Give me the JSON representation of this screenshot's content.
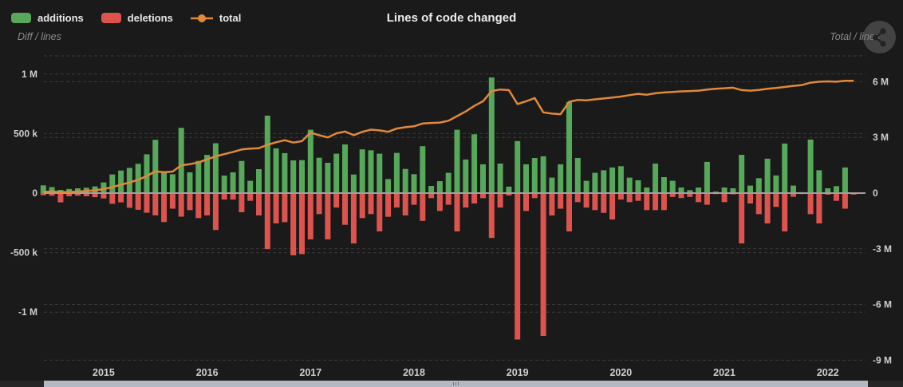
{
  "title": "Lines of code changed",
  "legend": {
    "items": [
      {
        "label": "additions",
        "marker": "square",
        "color": "#57a85a"
      },
      {
        "label": "deletions",
        "marker": "square",
        "color": "#dd544f"
      },
      {
        "label": "total",
        "marker": "line-circle",
        "color": "#e18938"
      }
    ]
  },
  "left_axis": {
    "title": "Diff / lines",
    "ticks": [
      {
        "label": "1 M",
        "value_k": 1000
      },
      {
        "label": "500 k",
        "value_k": 500
      },
      {
        "label": "0",
        "value_k": 0
      },
      {
        "label": "-500 k",
        "value_k": -500
      },
      {
        "label": "-1 M",
        "value_k": -1000
      }
    ]
  },
  "right_axis": {
    "title": "Total / lines",
    "ticks": [
      {
        "label": "6 M",
        "value_m": 6
      },
      {
        "label": "3 M",
        "value_m": 3
      },
      {
        "label": "0",
        "value_m": 0
      },
      {
        "label": "-3 M",
        "value_m": -3
      },
      {
        "label": "-6 M",
        "value_m": -6
      },
      {
        "label": "-9 M",
        "value_m": -9
      }
    ]
  },
  "x_axis": {
    "ticks": [
      {
        "label": "2015"
      },
      {
        "label": "2016"
      },
      {
        "label": "2017"
      },
      {
        "label": "2018"
      },
      {
        "label": "2019"
      },
      {
        "label": "2020"
      },
      {
        "label": "2021"
      },
      {
        "label": "2022"
      }
    ]
  },
  "colors": {
    "background": "#1a1a1a",
    "additions": "#57a85a",
    "deletions": "#dd544f",
    "total": "#e18938",
    "grid": "#3a3a3a",
    "zero_line": "#a0a0a0",
    "axis_text": "#cfcfcf",
    "muted_text": "#8c8c8c",
    "scrollbar_thumb": "#b3b8c2"
  },
  "icons": {
    "menu_button": "share-icon"
  },
  "chart_data": {
    "type": "bar+line",
    "title": "Lines of code changed",
    "x_start_month": "2014-06",
    "x_interval": "month",
    "left_ylabel": "Diff / lines",
    "right_ylabel": "Total / lines",
    "left_ylim_k": [
      -1430,
      1150
    ],
    "right_ylim_m": [
      -9.2,
      7.4
    ],
    "grid": "dashed-horizontal",
    "legend_position": "top-left",
    "series": [
      {
        "name": "additions",
        "type": "bar",
        "axis": "left",
        "unit": "thousand lines",
        "values_k": [
          65,
          50,
          27,
          34,
          40,
          45,
          56,
          90,
          157,
          190,
          212,
          246,
          326,
          448,
          170,
          158,
          548,
          174,
          270,
          321,
          419,
          147,
          174,
          270,
          103,
          201,
          651,
          376,
          336,
          275,
          277,
          532,
          297,
          255,
          331,
          409,
          156,
          367,
          360,
          331,
          118,
          338,
          203,
          159,
          394,
          60,
          100,
          170,
          532,
          282,
          494,
          242,
          971,
          248,
          54,
          437,
          242,
          295,
          309,
          130,
          242,
          766,
          295,
          103,
          170,
          192,
          215,
          226,
          130,
          107,
          47,
          248,
          134,
          103,
          47,
          25,
          47,
          262,
          13,
          47,
          40,
          322,
          63,
          125,
          289,
          148,
          416,
          63,
          8,
          450,
          192,
          40,
          58,
          215,
          5
        ]
      },
      {
        "name": "deletions",
        "type": "bar",
        "axis": "left",
        "unit": "thousand lines",
        "direction": "negative",
        "values_k": [
          18,
          22,
          78,
          27,
          22,
          27,
          34,
          45,
          90,
          78,
          123,
          140,
          165,
          187,
          243,
          131,
          198,
          143,
          210,
          187,
          310,
          54,
          54,
          161,
          65,
          188,
          470,
          255,
          244,
          523,
          512,
          389,
          176,
          389,
          121,
          266,
          423,
          210,
          176,
          322,
          199,
          121,
          188,
          98,
          233,
          42,
          150,
          98,
          322,
          121,
          87,
          42,
          377,
          121,
          20,
          1230,
          150,
          42,
          1200,
          188,
          131,
          322,
          76,
          121,
          143,
          166,
          222,
          54,
          76,
          65,
          143,
          143,
          143,
          32,
          42,
          32,
          76,
          98,
          8,
          76,
          10,
          423,
          87,
          177,
          255,
          116,
          322,
          31,
          8,
          177,
          255,
          13,
          65,
          131,
          13
        ]
      },
      {
        "name": "total",
        "type": "line",
        "axis": "right",
        "unit": "million lines",
        "values_m": [
          0.06,
          0.09,
          0.05,
          0.06,
          0.08,
          0.11,
          0.15,
          0.22,
          0.32,
          0.45,
          0.57,
          0.72,
          0.92,
          1.18,
          1.12,
          1.16,
          1.5,
          1.56,
          1.65,
          1.82,
          1.98,
          2.1,
          2.22,
          2.35,
          2.4,
          2.42,
          2.6,
          2.74,
          2.85,
          2.72,
          2.8,
          3.26,
          3.12,
          3.0,
          3.22,
          3.32,
          3.12,
          3.3,
          3.42,
          3.38,
          3.3,
          3.48,
          3.55,
          3.6,
          3.75,
          3.78,
          3.8,
          3.9,
          4.15,
          4.4,
          4.7,
          4.95,
          5.5,
          5.58,
          5.55,
          4.8,
          4.95,
          5.12,
          4.35,
          4.28,
          4.25,
          4.92,
          5.02,
          5.0,
          5.05,
          5.1,
          5.15,
          5.2,
          5.28,
          5.35,
          5.3,
          5.38,
          5.42,
          5.45,
          5.48,
          5.5,
          5.52,
          5.58,
          5.62,
          5.65,
          5.68,
          5.55,
          5.52,
          5.56,
          5.62,
          5.66,
          5.72,
          5.78,
          5.82,
          5.95,
          6.0,
          6.02,
          6.0,
          6.05,
          6.05
        ]
      }
    ]
  },
  "scrollbar": {
    "present": true,
    "thumb_covers": "full range"
  }
}
